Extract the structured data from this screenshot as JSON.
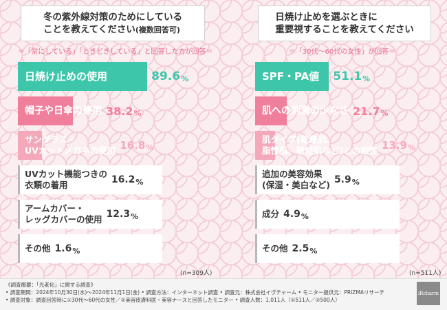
{
  "left": {
    "question_lines": [
      "冬の紫外線対策のためにしている",
      "ことを教えてください"
    ],
    "question_suffix": "(複数回答可)",
    "note": "＝「常にしている」「ときどきしている」と回答した方が回答＝",
    "n": "(n=309人)"
  },
  "right": {
    "question_lines": [
      "日焼け止めを選ぶときに",
      "重要視することを教えてください"
    ],
    "note": "＝「30代～60代の女性」が回答＝",
    "n": "(n=511人)"
  },
  "footer": {
    "lines": [
      "《調査概要：「光老化」に関する調査》",
      "• 調査期間：2024年10月30日(水)～2024年11月1日(金) • 調査方法：インターネット調査 • 調査元：株式会社イヴチャーム • モニター提供元：PRIZMAリサーチ",
      "• 調査対象：調査回答時に①30代～60代の女性／②美容皮膚科医・美容ナースと回答したモニター • 調査人数：1,011人（①511人／②500人）"
    ],
    "logo": "iRcharm"
  },
  "chart_data": [
    {
      "type": "bar",
      "orientation": "horizontal",
      "categories": [
        "日焼け止めの使用",
        "帽子や日傘の使用",
        "サングラス・UVカットメガネの使用",
        "UVカット機能つきの衣類の着用",
        "アームカバー・レッグカバーの使用",
        "その他"
      ],
      "category_lines": [
        [
          "日焼け止めの使用"
        ],
        [
          "帽子や日傘の使用"
        ],
        [
          "サングラス・",
          "UVカットメガネの使用"
        ],
        [
          "UVカット機能つきの",
          "衣類の着用"
        ],
        [
          "アームカバー・",
          "レッグカバーの使用"
        ],
        [
          "その他"
        ]
      ],
      "values": [
        89.6,
        38.2,
        16.8,
        16.2,
        12.3,
        1.6
      ],
      "value_labels": [
        "89.6",
        "38.2",
        "16.8",
        "16.2",
        "12.3",
        "1.6"
      ],
      "unit": "%",
      "xlim": [
        0,
        100
      ],
      "colors": [
        "#3ec6ab",
        "#f07f9c",
        "#f4a9bb",
        "#ffffff",
        "#ffffff",
        "#ffffff"
      ]
    },
    {
      "type": "bar",
      "orientation": "horizontal",
      "categories": [
        "SPF・PA値",
        "肌への刺激の少なさ",
        "肌タイプ(乾燥肌、脂性肌、敏感肌など)との相性",
        "追加の美容効果(保湿・美白など)",
        "成分",
        "その他"
      ],
      "category_lines": [
        [
          "SPF・PA値"
        ],
        [
          "肌への刺激の少なさ"
        ],
        [
          "肌タイプ(乾燥肌、",
          "脂性肌、敏感肌など)との相性"
        ],
        [
          "追加の美容効果",
          "(保湿・美白など)"
        ],
        [
          "成分"
        ],
        [
          "その他"
        ]
      ],
      "values": [
        51.1,
        21.7,
        13.9,
        5.9,
        4.9,
        2.5
      ],
      "value_labels": [
        "51.1",
        "21.7",
        "13.9",
        "5.9",
        "4.9",
        "2.5"
      ],
      "unit": "%",
      "xlim": [
        0,
        100
      ],
      "colors": [
        "#3ec6ab",
        "#f07f9c",
        "#f4a9bb",
        "#ffffff",
        "#ffffff",
        "#ffffff"
      ]
    }
  ]
}
